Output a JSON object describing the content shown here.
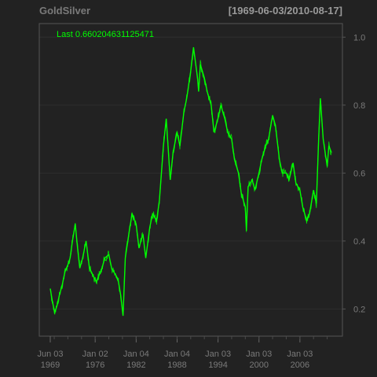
{
  "chart_data": {
    "type": "line",
    "title": "GoldSilver",
    "date_range": "[1969-06-03/2010-08-17]",
    "last_label": "Last 0.660204631125471",
    "x_start": "1969-06-03",
    "x_end": "2010-08-17",
    "xlim": [
      "1969-06-03",
      "2010-08-17"
    ],
    "x_ticks": [
      {
        "date": "1969-06-03",
        "label": "Jun 03\n1969"
      },
      {
        "date": "1976-01-02",
        "label": "Jan 02\n1976"
      },
      {
        "date": "1982-01-04",
        "label": "Jan 04\n1982"
      },
      {
        "date": "1988-01-04",
        "label": "Jan 04\n1988"
      },
      {
        "date": "1994-01-03",
        "label": "Jan 03\n1994"
      },
      {
        "date": "2000-01-03",
        "label": "Jan 03\n2000"
      },
      {
        "date": "2006-01-03",
        "label": "Jan 03\n2006"
      }
    ],
    "y_ticks": [
      "0.2",
      "0.4",
      "0.6",
      "0.8",
      "1.0"
    ],
    "ylim": [
      0.12,
      1.04
    ],
    "grid": true,
    "series": [
      {
        "color": "#00ff00",
        "x": [
          "1969-06-03",
          "1969-10-01",
          "1970-02-01",
          "1970-06-01",
          "1970-10-01",
          "1971-03-01",
          "1971-08-01",
          "1972-01-01",
          "1972-05-01",
          "1972-09-01",
          "1973-02-01",
          "1973-06-01",
          "1973-10-01",
          "1974-03-01",
          "1974-09-01",
          "1975-03-01",
          "1975-09-01",
          "1976-03-01",
          "1976-08-01",
          "1977-01-01",
          "1977-06-01",
          "1978-01-01",
          "1978-06-01",
          "1979-01-01",
          "1979-06-01",
          "1979-10-01",
          "1980-02-01",
          "1980-06-01",
          "1981-01-01",
          "1981-06-01",
          "1982-01-01",
          "1982-06-01",
          "1983-01-01",
          "1983-06-01",
          "1984-01-01",
          "1984-06-01",
          "1985-01-01",
          "1985-06-01",
          "1986-01-01",
          "1986-06-01",
          "1987-01-01",
          "1987-06-01",
          "1988-01-01",
          "1988-06-01",
          "1989-01-01",
          "1989-06-01",
          "1990-01-01",
          "1990-06-01",
          "1991-01-01",
          "1991-03-01",
          "1991-06-01",
          "1992-01-01",
          "1992-06-01",
          "1993-01-01",
          "1993-06-01",
          "1994-01-01",
          "1994-06-01",
          "1995-01-01",
          "1995-06-01",
          "1996-01-01",
          "1996-06-01",
          "1997-01-01",
          "1997-06-01",
          "1998-01-01",
          "1998-03-01",
          "1998-06-01",
          "1999-01-01",
          "1999-06-01",
          "2000-01-01",
          "2000-06-01",
          "2001-01-01",
          "2001-06-01",
          "2002-01-01",
          "2002-06-01",
          "2003-01-01",
          "2003-06-01",
          "2004-01-01",
          "2004-06-01",
          "2005-01-01",
          "2005-06-01",
          "2006-01-01",
          "2006-06-01",
          "2007-01-01",
          "2007-06-01",
          "2008-01-01",
          "2008-06-01",
          "2008-10-01",
          "2009-01-01",
          "2009-06-01",
          "2010-01-01",
          "2010-04-01",
          "2010-08-17"
        ],
        "y": [
          0.26,
          0.22,
          0.19,
          0.21,
          0.24,
          0.27,
          0.31,
          0.33,
          0.35,
          0.4,
          0.45,
          0.38,
          0.32,
          0.35,
          0.4,
          0.32,
          0.3,
          0.28,
          0.3,
          0.32,
          0.35,
          0.36,
          0.32,
          0.3,
          0.28,
          0.24,
          0.18,
          0.35,
          0.43,
          0.48,
          0.45,
          0.38,
          0.42,
          0.35,
          0.44,
          0.48,
          0.46,
          0.52,
          0.68,
          0.76,
          0.58,
          0.66,
          0.72,
          0.68,
          0.78,
          0.82,
          0.9,
          0.97,
          0.88,
          0.84,
          0.92,
          0.88,
          0.84,
          0.8,
          0.72,
          0.76,
          0.8,
          0.76,
          0.72,
          0.7,
          0.64,
          0.6,
          0.54,
          0.5,
          0.43,
          0.56,
          0.58,
          0.55,
          0.6,
          0.64,
          0.68,
          0.7,
          0.77,
          0.74,
          0.64,
          0.6,
          0.6,
          0.58,
          0.63,
          0.57,
          0.55,
          0.5,
          0.46,
          0.48,
          0.55,
          0.51,
          0.7,
          0.82,
          0.7,
          0.62,
          0.68,
          0.66
        ]
      }
    ]
  }
}
